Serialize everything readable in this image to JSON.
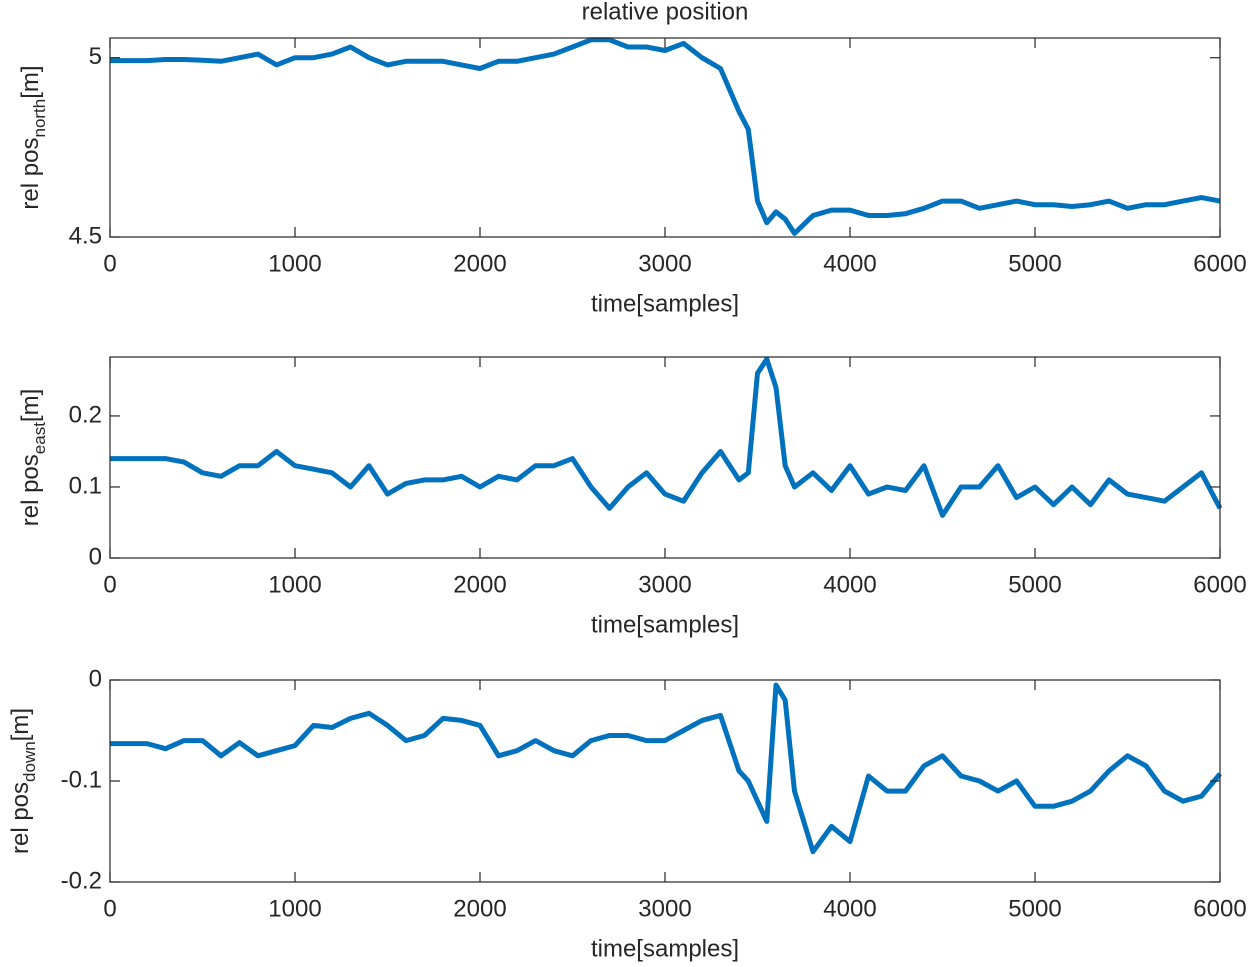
{
  "chart_data": [
    {
      "type": "line",
      "title": "relative position",
      "xlabel": "time[samples]",
      "ylabel": [
        "rel pos",
        "north",
        "[m]"
      ],
      "color": "#0072bd",
      "grid": false,
      "x": [
        0,
        100,
        200,
        300,
        400,
        500,
        600,
        700,
        800,
        900,
        1000,
        1100,
        1200,
        1300,
        1400,
        1500,
        1600,
        1700,
        1800,
        1900,
        2000,
        2100,
        2200,
        2300,
        2400,
        2500,
        2600,
        2700,
        2800,
        2900,
        3000,
        3100,
        3200,
        3300,
        3400,
        3450,
        3500,
        3550,
        3600,
        3650,
        3700,
        3800,
        3900,
        4000,
        4100,
        4200,
        4300,
        4400,
        4500,
        4600,
        4700,
        4800,
        4900,
        5000,
        5100,
        5200,
        5300,
        5400,
        5500,
        5600,
        5700,
        5800,
        5900,
        6000
      ],
      "values": [
        4.992,
        4.992,
        4.992,
        4.995,
        4.995,
        4.993,
        4.99,
        5.0,
        5.01,
        4.98,
        5.0,
        5.0,
        5.01,
        5.03,
        5.0,
        4.98,
        4.99,
        4.99,
        4.99,
        4.98,
        4.97,
        4.99,
        4.99,
        5.0,
        5.01,
        5.03,
        5.05,
        5.05,
        5.03,
        5.03,
        5.02,
        5.04,
        5.0,
        4.97,
        4.85,
        4.8,
        4.6,
        4.54,
        4.57,
        4.55,
        4.51,
        4.56,
        4.575,
        4.575,
        4.56,
        4.56,
        4.565,
        4.58,
        4.6,
        4.6,
        4.58,
        4.59,
        4.6,
        4.59,
        4.59,
        4.585,
        4.59,
        4.6,
        4.58,
        4.59,
        4.59,
        4.6,
        4.61,
        4.6
      ],
      "xlim": [
        0,
        6000
      ],
      "xticks": [
        0,
        1000,
        2000,
        3000,
        4000,
        5000,
        6000
      ],
      "ylim": [
        4.5,
        5.055
      ],
      "yticks": [
        4.5,
        5
      ]
    },
    {
      "type": "line",
      "xlabel": "time[samples]",
      "ylabel": [
        "rel pos",
        "east",
        "[m]"
      ],
      "color": "#0072bd",
      "grid": false,
      "x": [
        0,
        100,
        200,
        300,
        400,
        500,
        600,
        700,
        800,
        900,
        1000,
        1100,
        1200,
        1300,
        1400,
        1500,
        1600,
        1700,
        1800,
        1900,
        2000,
        2100,
        2200,
        2300,
        2400,
        2500,
        2600,
        2700,
        2800,
        2900,
        3000,
        3100,
        3200,
        3300,
        3400,
        3450,
        3500,
        3550,
        3600,
        3650,
        3700,
        3800,
        3900,
        4000,
        4100,
        4200,
        4300,
        4400,
        4500,
        4600,
        4700,
        4800,
        4900,
        5000,
        5100,
        5200,
        5300,
        5400,
        5500,
        5600,
        5700,
        5800,
        5900,
        6000
      ],
      "values": [
        0.14,
        0.14,
        0.14,
        0.14,
        0.135,
        0.12,
        0.115,
        0.13,
        0.13,
        0.15,
        0.13,
        0.125,
        0.12,
        0.1,
        0.13,
        0.09,
        0.105,
        0.11,
        0.11,
        0.115,
        0.1,
        0.115,
        0.11,
        0.13,
        0.13,
        0.14,
        0.1,
        0.07,
        0.1,
        0.12,
        0.09,
        0.08,
        0.12,
        0.15,
        0.11,
        0.12,
        0.26,
        0.28,
        0.24,
        0.13,
        0.1,
        0.12,
        0.095,
        0.13,
        0.09,
        0.1,
        0.095,
        0.13,
        0.06,
        0.1,
        0.1,
        0.13,
        0.085,
        0.1,
        0.075,
        0.1,
        0.075,
        0.11,
        0.09,
        0.085,
        0.08,
        0.1,
        0.12,
        0.07
      ],
      "xlim": [
        0,
        6000
      ],
      "xticks": [
        0,
        1000,
        2000,
        3000,
        4000,
        5000,
        6000
      ],
      "ylim": [
        0,
        0.283
      ],
      "yticks": [
        0,
        0.1,
        0.2
      ]
    },
    {
      "type": "line",
      "xlabel": "time[samples]",
      "ylabel": [
        "rel pos",
        "down",
        "[m]"
      ],
      "color": "#0072bd",
      "grid": false,
      "x": [
        0,
        100,
        200,
        300,
        400,
        500,
        600,
        700,
        800,
        900,
        1000,
        1100,
        1200,
        1300,
        1400,
        1500,
        1600,
        1700,
        1800,
        1900,
        2000,
        2100,
        2200,
        2300,
        2400,
        2500,
        2600,
        2700,
        2800,
        2900,
        3000,
        3100,
        3200,
        3300,
        3400,
        3450,
        3500,
        3550,
        3600,
        3650,
        3700,
        3800,
        3900,
        4000,
        4100,
        4200,
        4300,
        4400,
        4500,
        4600,
        4700,
        4800,
        4900,
        5000,
        5100,
        5200,
        5300,
        5400,
        5500,
        5600,
        5700,
        5800,
        5900,
        6000
      ],
      "values": [
        -0.063,
        -0.063,
        -0.063,
        -0.068,
        -0.06,
        -0.06,
        -0.075,
        -0.062,
        -0.075,
        -0.07,
        -0.065,
        -0.045,
        -0.047,
        -0.038,
        -0.033,
        -0.045,
        -0.06,
        -0.055,
        -0.038,
        -0.04,
        -0.045,
        -0.075,
        -0.07,
        -0.06,
        -0.07,
        -0.075,
        -0.06,
        -0.055,
        -0.055,
        -0.06,
        -0.06,
        -0.05,
        -0.04,
        -0.035,
        -0.09,
        -0.1,
        -0.12,
        -0.14,
        -0.005,
        -0.02,
        -0.11,
        -0.17,
        -0.145,
        -0.16,
        -0.095,
        -0.11,
        -0.11,
        -0.085,
        -0.075,
        -0.095,
        -0.1,
        -0.11,
        -0.1,
        -0.125,
        -0.125,
        -0.12,
        -0.11,
        -0.09,
        -0.075,
        -0.085,
        -0.11,
        -0.12,
        -0.115,
        -0.093
      ],
      "xlim": [
        0,
        6000
      ],
      "xticks": [
        0,
        1000,
        2000,
        3000,
        4000,
        5000,
        6000
      ],
      "ylim": [
        -0.2,
        0
      ],
      "yticks": [
        -0.2,
        -0.1,
        0
      ]
    }
  ]
}
